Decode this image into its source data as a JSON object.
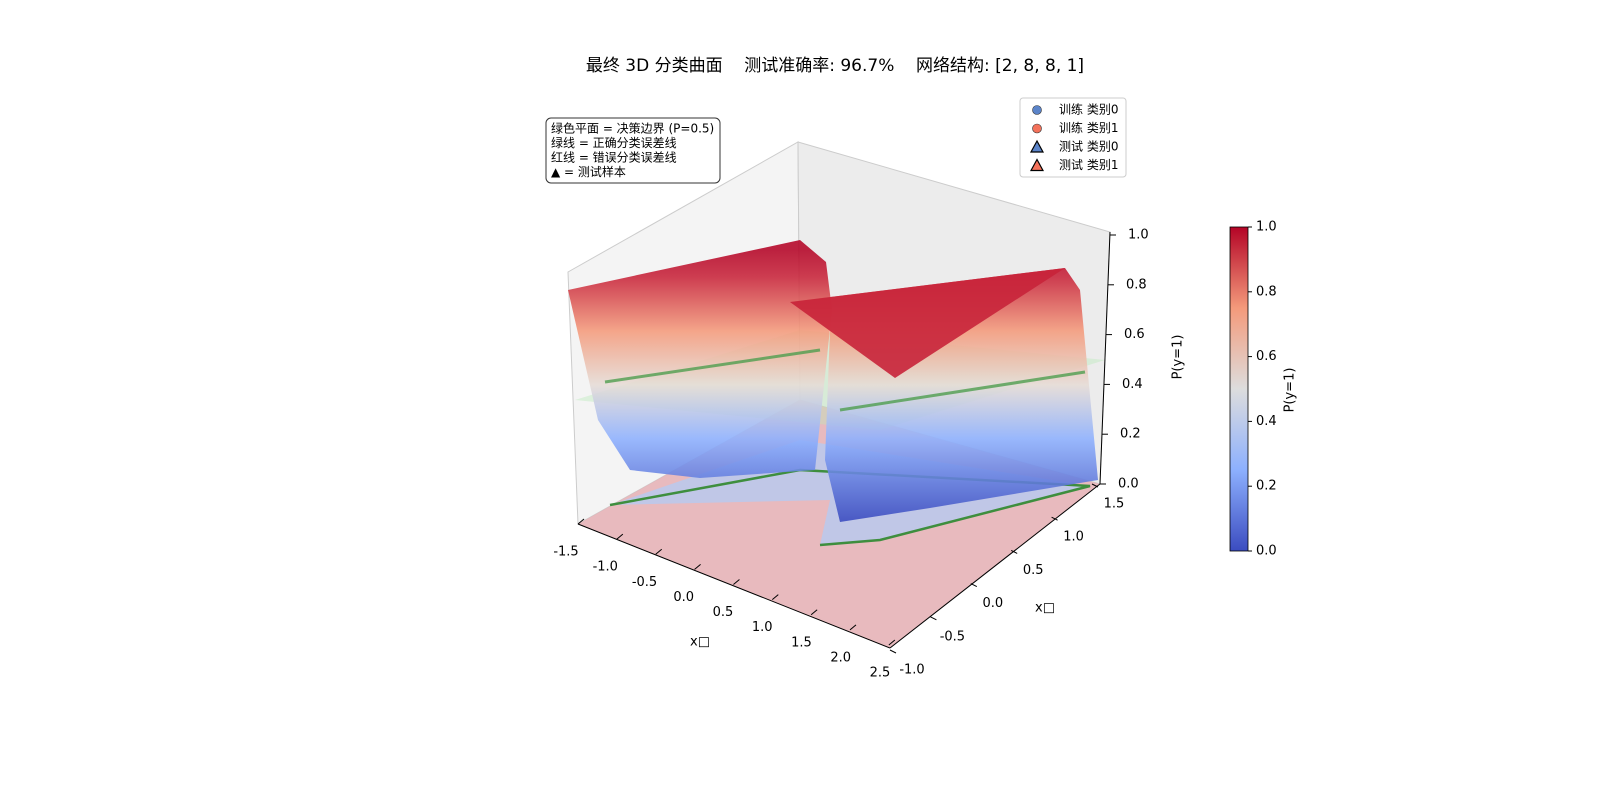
{
  "chart_data": {
    "type": "surface3d",
    "title": "最终 3D 分类曲面    测试准确率: 96.7%    网络结构: [2, 8, 8, 1]",
    "annotation": [
      "绿色平面 = 决策边界 (P=0.5)",
      "绿线 = 正确分类误差线",
      "红线 = 错误分类误差线",
      "▲ = 测试样本"
    ],
    "series": [
      {
        "name": "训练 类别0",
        "color": "#5b84c9",
        "marker": "circle"
      },
      {
        "name": "训练 类别1",
        "color": "#f4725b",
        "marker": "circle"
      },
      {
        "name": "测试 类别0",
        "color": "#5b84c9",
        "marker": "triangle"
      },
      {
        "name": "测试 类别1",
        "color": "#f4725b",
        "marker": "triangle"
      }
    ],
    "xlabel": "x□",
    "ylabel": "x□",
    "zlabel": "P(y=1)",
    "xlim": [
      -1.5,
      2.5
    ],
    "xticks": [
      -1.5,
      {
        "value": -1,
        "label": "-1.0"
      },
      -0.5,
      {
        "value": 0,
        "label": "0.0"
      },
      0.5,
      {
        "value": 1,
        "label": "1.0"
      },
      1.5,
      {
        "value": 2,
        "label": "2.0"
      },
      2.5
    ],
    "ylim": [
      -1,
      1.5
    ],
    "yticks": [
      {
        "value": -1,
        "label": "-1.0"
      },
      -0.5,
      {
        "value": 0,
        "label": "0.0"
      },
      0.5,
      {
        "value": 1,
        "label": "1.0"
      },
      1.5
    ],
    "zlim": [
      0,
      1
    ],
    "zticks": [
      {
        "value": 0,
        "label": "0.0"
      },
      0.2,
      0.4,
      0.6,
      0.8,
      {
        "value": 1,
        "label": "1.0"
      }
    ],
    "colorbar": {
      "label": "P(y=1)",
      "lim": [
        0,
        1
      ],
      "ticks": [
        {
          "value": 0,
          "label": "0.0"
        },
        0.2,
        0.4,
        0.6,
        0.8,
        {
          "value": 1,
          "label": "1.0"
        }
      ]
    }
  }
}
